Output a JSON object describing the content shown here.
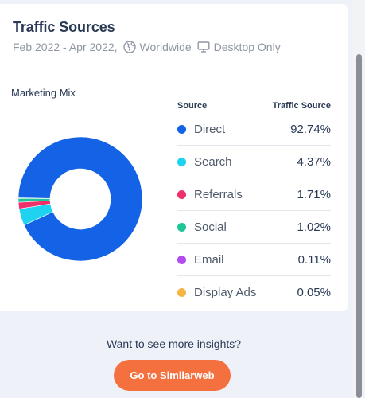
{
  "header": {
    "title": "Traffic Sources",
    "date_range": "Feb 2022 - Apr 2022,",
    "region": "Worldwide",
    "device": "Desktop Only"
  },
  "chart": {
    "label": "Marketing Mix",
    "col_source": "Source",
    "col_traffic": "Traffic Source"
  },
  "chart_data": {
    "type": "pie",
    "donut": true,
    "categories": [
      "Direct",
      "Search",
      "Referrals",
      "Social",
      "Email",
      "Display Ads"
    ],
    "values": [
      92.74,
      4.37,
      1.71,
      1.02,
      0.11,
      0.05
    ],
    "colors": [
      "#1463e6",
      "#1dd3f0",
      "#f0306b",
      "#1ec596",
      "#b14cf0",
      "#f5b444"
    ]
  },
  "legend": [
    {
      "name": "Direct",
      "value": "92.74%",
      "color": "#1463e6"
    },
    {
      "name": "Search",
      "value": "4.37%",
      "color": "#1dd3f0"
    },
    {
      "name": "Referrals",
      "value": "1.71%",
      "color": "#f0306b"
    },
    {
      "name": "Social",
      "value": "1.02%",
      "color": "#1ec596"
    },
    {
      "name": "Email",
      "value": "0.11%",
      "color": "#b14cf0"
    },
    {
      "name": "Display Ads",
      "value": "0.05%",
      "color": "#f5b444"
    }
  ],
  "cta": {
    "text": "Want to see more insights?",
    "button": "Go to Similarweb"
  },
  "icons": {
    "region": "globe-icon",
    "device": "monitor-icon"
  }
}
